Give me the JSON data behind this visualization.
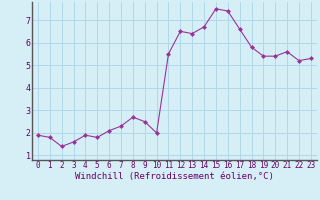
{
  "x": [
    0,
    1,
    2,
    3,
    4,
    5,
    6,
    7,
    8,
    9,
    10,
    11,
    12,
    13,
    14,
    15,
    16,
    17,
    18,
    19,
    20,
    21,
    22,
    23
  ],
  "y": [
    1.9,
    1.8,
    1.4,
    1.6,
    1.9,
    1.8,
    2.1,
    2.3,
    2.7,
    2.5,
    2.0,
    5.5,
    6.5,
    6.4,
    6.7,
    7.5,
    7.4,
    6.6,
    5.8,
    5.4,
    5.4,
    5.6,
    5.2,
    5.3
  ],
  "xlim": [
    -0.5,
    23.5
  ],
  "ylim": [
    0.8,
    7.8
  ],
  "yticks": [
    1,
    2,
    3,
    4,
    5,
    6,
    7
  ],
  "xticks": [
    0,
    1,
    2,
    3,
    4,
    5,
    6,
    7,
    8,
    9,
    10,
    11,
    12,
    13,
    14,
    15,
    16,
    17,
    18,
    19,
    20,
    21,
    22,
    23
  ],
  "xlabel": "Windchill (Refroidissement éolien,°C)",
  "line_color": "#993399",
  "marker": "D",
  "marker_size": 2.0,
  "bg_color": "#d6eff7",
  "grid_color": "#b0d8e8",
  "tick_label_fontsize": 5.5,
  "xlabel_fontsize": 6.5,
  "spine_color": "#888888"
}
